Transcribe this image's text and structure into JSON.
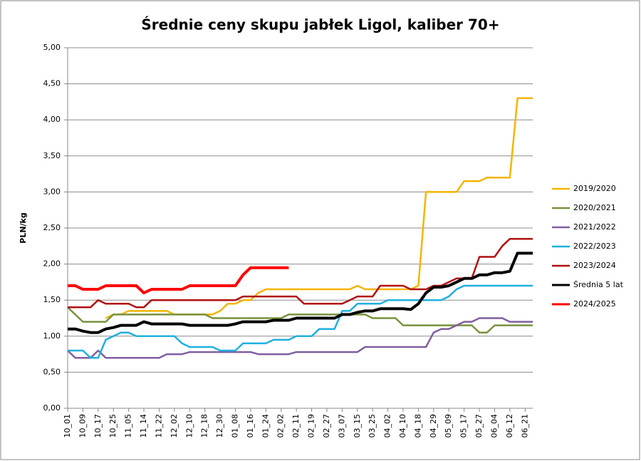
{
  "chart_data": {
    "type": "line",
    "title": "Średnie ceny skupu jabłek Ligol, kaliber 70+",
    "y_label": "PLN/kg",
    "categories": [
      "10_01",
      null,
      "10_09",
      null,
      "10_17",
      null,
      "10_25",
      null,
      "11_05",
      null,
      "11_14",
      null,
      "11_22",
      null,
      "12_02",
      null,
      "12_10",
      null,
      "12_18",
      null,
      "12_30",
      null,
      "01_08",
      null,
      "01_16",
      null,
      "01_24",
      null,
      "02_02",
      null,
      "02_11",
      null,
      "02_19",
      null,
      "02_27",
      null,
      "03_07",
      null,
      "03_15",
      null,
      "03_25",
      null,
      "04_02",
      null,
      "04_10",
      null,
      "04_18",
      null,
      "04_29",
      null,
      "05_09",
      null,
      "05_17",
      null,
      "05_27",
      null,
      "06_04",
      null,
      "06_12",
      null,
      "06_21",
      null
    ],
    "ylim": [
      0,
      5
    ],
    "yticks": [
      {
        "value": 0,
        "label": "0,00"
      },
      {
        "value": 0.5,
        "label": "0,50"
      },
      {
        "value": 1,
        "label": "1,00"
      },
      {
        "value": 1.5,
        "label": "1,50"
      },
      {
        "value": 2,
        "label": "2,00"
      },
      {
        "value": 2.5,
        "label": "2,50"
      },
      {
        "value": 3,
        "label": "3,00"
      },
      {
        "value": 3.5,
        "label": "3,50"
      },
      {
        "value": 4,
        "label": "4,00"
      },
      {
        "value": 4.5,
        "label": "4,50"
      },
      {
        "value": 5,
        "label": "5,00"
      }
    ],
    "grid": true,
    "legend": "right",
    "series": [
      {
        "name": "2019/2020",
        "color": "#f5b400",
        "width": 2.5,
        "values": [
          null,
          null,
          null,
          null,
          null,
          1.25,
          1.3,
          1.3,
          1.35,
          1.35,
          1.35,
          1.35,
          1.35,
          1.35,
          1.3,
          1.3,
          1.3,
          1.3,
          1.3,
          1.3,
          1.35,
          1.45,
          1.45,
          1.5,
          1.5,
          1.6,
          1.65,
          1.65,
          1.65,
          1.65,
          1.65,
          1.65,
          1.65,
          1.65,
          1.65,
          1.65,
          1.65,
          1.65,
          1.7,
          1.65,
          1.65,
          1.65,
          1.65,
          1.65,
          1.65,
          1.65,
          1.7,
          3.0,
          3.0,
          3.0,
          3.0,
          3.0,
          3.15,
          3.15,
          3.15,
          3.2,
          3.2,
          3.2,
          3.2,
          4.3,
          4.3,
          4.3
        ]
      },
      {
        "name": "2020/2021",
        "color": "#77933c",
        "width": 2.5,
        "values": [
          1.4,
          1.3,
          1.2,
          1.2,
          1.2,
          1.2,
          1.3,
          1.3,
          1.3,
          1.3,
          1.3,
          1.3,
          1.3,
          1.3,
          1.3,
          1.3,
          1.3,
          1.3,
          1.3,
          1.25,
          1.25,
          1.25,
          1.25,
          1.25,
          1.25,
          1.25,
          1.25,
          1.25,
          1.25,
          1.3,
          1.3,
          1.3,
          1.3,
          1.3,
          1.3,
          1.3,
          1.3,
          1.3,
          1.3,
          1.3,
          1.25,
          1.25,
          1.25,
          1.25,
          1.15,
          1.15,
          1.15,
          1.15,
          1.15,
          1.15,
          1.15,
          1.15,
          1.15,
          1.15,
          1.05,
          1.05,
          1.15,
          1.15,
          1.15,
          1.15,
          1.15,
          1.15
        ]
      },
      {
        "name": "2021/2022",
        "color": "#7f5fa0",
        "width": 2.5,
        "values": [
          0.8,
          0.7,
          0.7,
          0.7,
          0.8,
          0.7,
          0.7,
          0.7,
          0.7,
          0.7,
          0.7,
          0.7,
          0.7,
          0.75,
          0.75,
          0.75,
          0.78,
          0.78,
          0.78,
          0.78,
          0.78,
          0.78,
          0.78,
          0.78,
          0.78,
          0.75,
          0.75,
          0.75,
          0.75,
          0.75,
          0.78,
          0.78,
          0.78,
          0.78,
          0.78,
          0.78,
          0.78,
          0.78,
          0.78,
          0.85,
          0.85,
          0.85,
          0.85,
          0.85,
          0.85,
          0.85,
          0.85,
          0.85,
          1.05,
          1.1,
          1.1,
          1.15,
          1.2,
          1.2,
          1.25,
          1.25,
          1.25,
          1.25,
          1.2,
          1.2,
          1.2,
          1.2
        ]
      },
      {
        "name": "2022/2023",
        "color": "#1fb0e0",
        "width": 2.5,
        "values": [
          0.8,
          0.8,
          0.8,
          0.7,
          0.7,
          0.95,
          1.0,
          1.05,
          1.05,
          1.0,
          1.0,
          1.0,
          1.0,
          1.0,
          1.0,
          0.9,
          0.85,
          0.85,
          0.85,
          0.85,
          0.8,
          0.8,
          0.8,
          0.9,
          0.9,
          0.9,
          0.9,
          0.95,
          0.95,
          0.95,
          1.0,
          1.0,
          1.0,
          1.1,
          1.1,
          1.1,
          1.35,
          1.35,
          1.45,
          1.45,
          1.45,
          1.45,
          1.5,
          1.5,
          1.5,
          1.5,
          1.5,
          1.5,
          1.5,
          1.5,
          1.55,
          1.65,
          1.7,
          1.7,
          1.7,
          1.7,
          1.7,
          1.7,
          1.7,
          1.7,
          1.7,
          1.7
        ]
      },
      {
        "name": "2023/2024",
        "color": "#b01010",
        "width": 2.5,
        "values": [
          1.4,
          1.4,
          1.4,
          1.4,
          1.5,
          1.45,
          1.45,
          1.45,
          1.45,
          1.4,
          1.4,
          1.5,
          1.5,
          1.5,
          1.5,
          1.5,
          1.5,
          1.5,
          1.5,
          1.5,
          1.5,
          1.5,
          1.5,
          1.55,
          1.55,
          1.55,
          1.55,
          1.55,
          1.55,
          1.55,
          1.55,
          1.45,
          1.45,
          1.45,
          1.45,
          1.45,
          1.45,
          1.5,
          1.55,
          1.55,
          1.55,
          1.7,
          1.7,
          1.7,
          1.7,
          1.65,
          1.65,
          1.65,
          1.7,
          1.7,
          1.75,
          1.8,
          1.8,
          1.8,
          2.1,
          2.1,
          2.1,
          2.25,
          2.35,
          2.35,
          2.35,
          2.35
        ]
      },
      {
        "name": "Średnia 5 lat",
        "color": "#000000",
        "width": 4,
        "values": [
          1.1,
          1.1,
          1.07,
          1.05,
          1.05,
          1.1,
          1.12,
          1.15,
          1.15,
          1.15,
          1.2,
          1.17,
          1.17,
          1.17,
          1.17,
          1.17,
          1.15,
          1.15,
          1.15,
          1.15,
          1.15,
          1.15,
          1.17,
          1.2,
          1.2,
          1.2,
          1.2,
          1.22,
          1.22,
          1.22,
          1.25,
          1.25,
          1.25,
          1.25,
          1.25,
          1.25,
          1.3,
          1.3,
          1.33,
          1.35,
          1.35,
          1.38,
          1.38,
          1.38,
          1.38,
          1.37,
          1.45,
          1.6,
          1.68,
          1.68,
          1.7,
          1.75,
          1.8,
          1.8,
          1.85,
          1.85,
          1.88,
          1.88,
          1.9,
          2.15,
          2.15,
          2.15
        ]
      },
      {
        "name": "2024/2025",
        "color": "#ff0000",
        "width": 4,
        "values": [
          1.7,
          1.7,
          1.65,
          1.65,
          1.65,
          1.7,
          1.7,
          1.7,
          1.7,
          1.7,
          1.6,
          1.65,
          1.65,
          1.65,
          1.65,
          1.65,
          1.7,
          1.7,
          1.7,
          1.7,
          1.7,
          1.7,
          1.7,
          1.85,
          1.95,
          1.95,
          1.95,
          1.95,
          1.95,
          1.95,
          null,
          null,
          null,
          null,
          null,
          null,
          null,
          null,
          null,
          null,
          null,
          null,
          null,
          null,
          null,
          null,
          null,
          null,
          null,
          null,
          null,
          null,
          null,
          null,
          null,
          null,
          null,
          null,
          null,
          null,
          null,
          null
        ]
      }
    ]
  }
}
